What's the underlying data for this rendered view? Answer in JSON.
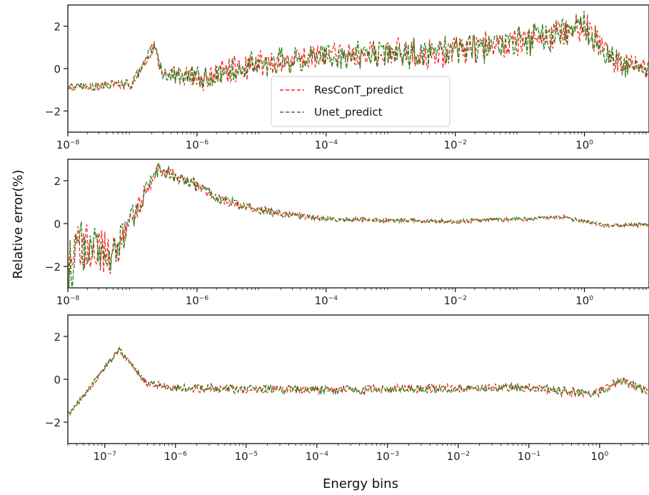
{
  "chart_data": {
    "type": "line",
    "ylabel": "Relative error(%)",
    "xlabel": "Energy bins",
    "legend": {
      "placement": "center (top panel)",
      "entries": [
        "ResConT_predict",
        "Unet_predict"
      ]
    },
    "colors": {
      "ResConT_predict": "#ff2020",
      "Unet_predict": "#2e7d1a"
    },
    "panels": [
      {
        "x_scale": "log",
        "xlim": [
          1e-08,
          10
        ],
        "ylim": [
          -3,
          3
        ],
        "yticks": [
          -2,
          0,
          2
        ],
        "xticks": [
          {
            "v": 1e-08,
            "label": "10",
            "exp": "−8"
          },
          {
            "v": 1e-06,
            "label": "10",
            "exp": "−6"
          },
          {
            "v": 0.0001,
            "label": "10",
            "exp": "−4"
          },
          {
            "v": 0.01,
            "label": "10",
            "exp": "−2"
          },
          {
            "v": 1,
            "label": "10",
            "exp": "0"
          }
        ],
        "profile": [
          [
            1e-08,
            -0.9
          ],
          [
            1e-07,
            -0.7
          ],
          [
            2.2e-07,
            1.1
          ],
          [
            3e-07,
            -0.3
          ],
          [
            1e-06,
            -0.5
          ],
          [
            1e-05,
            0.3
          ],
          [
            0.0001,
            0.6
          ],
          [
            0.01,
            0.8
          ],
          [
            0.3,
            1.5
          ],
          [
            1,
            2.0
          ],
          [
            3,
            0.3
          ],
          [
            10,
            -0.1
          ]
        ],
        "noise": [
          [
            1e-08,
            0.15
          ],
          [
            2e-07,
            0.25
          ],
          [
            1e-06,
            0.55
          ],
          [
            0.0001,
            0.6
          ],
          [
            1,
            0.65
          ],
          [
            10,
            0.4
          ]
        ],
        "series": [
          {
            "name": "ResConT_predict"
          },
          {
            "name": "Unet_predict"
          }
        ]
      },
      {
        "x_scale": "log",
        "xlim": [
          1e-08,
          10
        ],
        "ylim": [
          -3,
          3
        ],
        "yticks": [
          -2,
          0,
          2
        ],
        "xticks": [
          {
            "v": 1e-08,
            "label": "10",
            "exp": "−8"
          },
          {
            "v": 1e-06,
            "label": "10",
            "exp": "−6"
          },
          {
            "v": 0.0001,
            "label": "10",
            "exp": "−4"
          },
          {
            "v": 0.01,
            "label": "10",
            "exp": "−2"
          },
          {
            "v": 1,
            "label": "10",
            "exp": "0"
          }
        ],
        "profile": [
          [
            1e-08,
            -1.8
          ],
          [
            2e-08,
            -1.0
          ],
          [
            5e-08,
            -1.5
          ],
          [
            2.5e-07,
            2.6
          ],
          [
            1e-06,
            1.8
          ],
          [
            2e-06,
            1.2
          ],
          [
            1e-05,
            0.6
          ],
          [
            0.0001,
            0.2
          ],
          [
            0.01,
            0.1
          ],
          [
            0.5,
            0.3
          ],
          [
            2,
            -0.1
          ],
          [
            10,
            -0.05
          ]
        ],
        "noise": [
          [
            1e-08,
            1.3
          ],
          [
            4e-08,
            0.9
          ],
          [
            2e-07,
            0.35
          ],
          [
            1e-06,
            0.25
          ],
          [
            0.0001,
            0.1
          ],
          [
            10,
            0.08
          ]
        ],
        "series": [
          {
            "name": "ResConT_predict"
          },
          {
            "name": "Unet_predict"
          }
        ]
      },
      {
        "x_scale": "log",
        "xlim": [
          3e-08,
          5
        ],
        "ylim": [
          -3,
          3
        ],
        "yticks": [
          -2,
          0,
          2
        ],
        "xticks": [
          {
            "v": 1e-07,
            "label": "10",
            "exp": "−7"
          },
          {
            "v": 1e-06,
            "label": "10",
            "exp": "−6"
          },
          {
            "v": 1e-05,
            "label": "10",
            "exp": "−5"
          },
          {
            "v": 0.0001,
            "label": "10",
            "exp": "−4"
          },
          {
            "v": 0.001,
            "label": "10",
            "exp": "−3"
          },
          {
            "v": 0.01,
            "label": "10",
            "exp": "−2"
          },
          {
            "v": 0.1,
            "label": "10",
            "exp": "−1"
          },
          {
            "v": 1,
            "label": "10",
            "exp": "0"
          }
        ],
        "profile": [
          [
            3e-08,
            -1.7
          ],
          [
            1.6e-07,
            1.4
          ],
          [
            4e-07,
            -0.2
          ],
          [
            1e-06,
            -0.4
          ],
          [
            0.0001,
            -0.5
          ],
          [
            0.1,
            -0.4
          ],
          [
            0.8,
            -0.7
          ],
          [
            2,
            -0.1
          ],
          [
            5,
            -0.6
          ]
        ],
        "noise": [
          [
            3e-08,
            0.1
          ],
          [
            1e-06,
            0.18
          ],
          [
            0.01,
            0.18
          ],
          [
            5,
            0.2
          ]
        ],
        "series": [
          {
            "name": "ResConT_predict"
          },
          {
            "name": "Unet_predict"
          }
        ]
      }
    ]
  }
}
